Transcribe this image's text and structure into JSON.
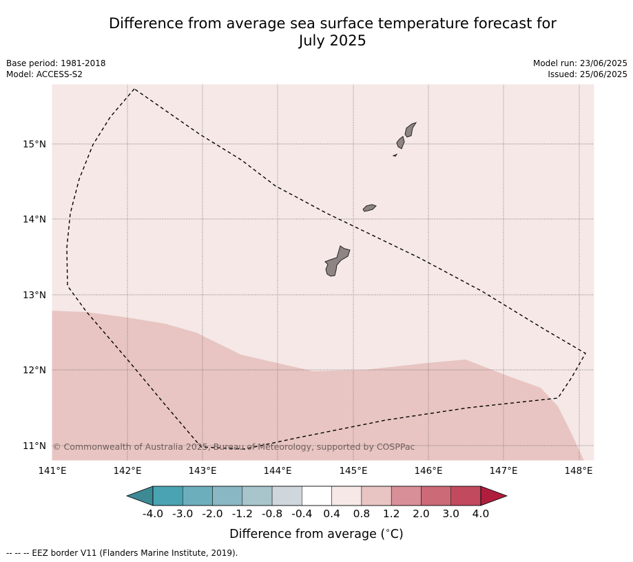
{
  "title_line1": "Difference from average sea surface temperature forecast for",
  "title_line2": "July 2025",
  "meta_left": {
    "base_period": "Base period: 1981-2018",
    "model": "Model: ACCESS-S2"
  },
  "meta_right": {
    "model_run": "Model run: 23/06/2025",
    "issued": "Issued: 25/06/2025"
  },
  "copyright": "© Commonwealth of Australia 2025, Bureau of Meteorology, supported by COSPPac",
  "lon_ticks": [
    "141°E",
    "142°E",
    "143°E",
    "144°E",
    "145°E",
    "146°E",
    "147°E",
    "148°E"
  ],
  "lat_ticks": [
    "15°N",
    "14°N",
    "13°N",
    "12°N",
    "11°N"
  ],
  "colorbar": {
    "title": "Difference from average (",
    "title_unit": "C)",
    "labels": [
      "-4.0",
      "-3.0",
      "-2.0",
      "-1.2",
      "-0.8",
      "-0.4",
      "0.4",
      "0.8",
      "1.2",
      "2.0",
      "3.0",
      "4.0"
    ],
    "colors": [
      "#3d8a95",
      "#4aa3b2",
      "#6daebd",
      "#89b7c3",
      "#a7c5cb",
      "#d0d7dc",
      "#ffffff",
      "#f5e8e7",
      "#e8c5c2",
      "#d98f97",
      "#cc6a78",
      "#c24a5e",
      "#b01e3e"
    ]
  },
  "map_colors": {
    "above_0_4": "#f5e8e7",
    "above_0_8": "#e8c5c2",
    "land": "#8e8484"
  },
  "footnote": "--  --  -- EEZ border V11 (Flanders Marine Institute, 2019)."
}
